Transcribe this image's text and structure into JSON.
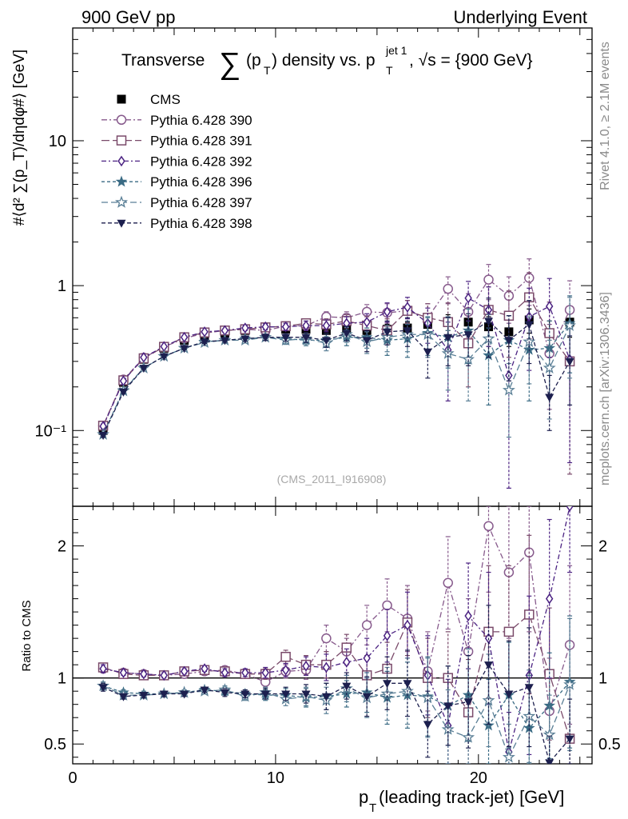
{
  "header": {
    "left_label": "900 GeV pp",
    "right_label": "Underlying Event",
    "side_label_top": "Rivet 4.1.0, ≥ 2.1M events",
    "side_label_bottom": "mcplots.cern.ch [arXiv:1306.3436]",
    "analysis_tag": "(CMS_2011_I916908)"
  },
  "chart_data": [
    {
      "type": "scatter",
      "panel": "main",
      "title_parts": {
        "prefix": "Transverse ",
        "sum_symbol": "∑",
        "p": "(p",
        "t_sub": "T",
        "mid": ") density vs. p",
        "jet_sup": "jet 1",
        "suffix": ", √s = {900 GeV}"
      },
      "ylabel": "#⟨d² ∑(p_T)/dηdφ#⟩ [GeV]",
      "yscale": "log",
      "ylim": [
        0.03,
        60
      ],
      "xlim": [
        0,
        25.6
      ],
      "yticks": [
        {
          "value": 0.1,
          "label": "10⁻¹"
        },
        {
          "value": 1,
          "label": "1"
        },
        {
          "value": 10,
          "label": "10"
        }
      ],
      "legend_position": "top-left",
      "series": [
        {
          "name": "CMS",
          "color": "#000000",
          "marker": "square-filled",
          "dash": "none",
          "x": [
            1.5,
            2.5,
            3.5,
            4.5,
            5.5,
            6.5,
            7.5,
            8.5,
            9.5,
            10.5,
            11.5,
            12.5,
            13.5,
            14.5,
            15.5,
            16.5,
            17.5,
            18.5,
            19.5,
            20.5,
            21.5,
            22.5,
            23.5,
            24.5
          ],
          "y": [
            0.1,
            0.215,
            0.31,
            0.37,
            0.42,
            0.45,
            0.47,
            0.49,
            0.5,
            0.5,
            0.5,
            0.49,
            0.5,
            0.49,
            0.5,
            0.51,
            0.54,
            0.56,
            0.56,
            0.52,
            0.48,
            0.58,
            0.47,
            0.56
          ],
          "err": [
            0.003,
            0.005,
            0.006,
            0.007,
            0.008,
            0.009,
            0.01,
            0.012,
            0.014,
            0.016,
            0.02,
            0.025,
            0.03,
            0.035,
            0.04,
            0.05,
            0.06,
            0.07,
            0.08,
            0.09,
            0.1,
            0.11,
            0.1,
            0.12
          ]
        },
        {
          "name": "Pythia 6.428 390",
          "color": "#875a8c",
          "marker": "circle-open",
          "dash": "7,3,2,3",
          "x": [
            1.5,
            2.5,
            3.5,
            4.5,
            5.5,
            6.5,
            7.5,
            8.5,
            9.5,
            10.5,
            11.5,
            12.5,
            13.5,
            14.5,
            15.5,
            16.5,
            17.5,
            18.5,
            19.5,
            20.5,
            21.5,
            22.5,
            23.5,
            24.5
          ],
          "y": [
            0.108,
            0.225,
            0.318,
            0.378,
            0.432,
            0.47,
            0.49,
            0.5,
            0.49,
            0.525,
            0.53,
            0.61,
            0.6,
            0.66,
            0.65,
            0.67,
            0.6,
            0.95,
            0.66,
            1.1,
            0.85,
            1.13,
            0.34,
            0.68
          ],
          "err": [
            0.004,
            0.006,
            0.007,
            0.008,
            0.01,
            0.012,
            0.015,
            0.02,
            0.025,
            0.03,
            0.04,
            0.05,
            0.06,
            0.08,
            0.1,
            0.12,
            0.15,
            0.2,
            0.22,
            0.3,
            0.3,
            0.4,
            0.2,
            0.4
          ]
        },
        {
          "name": "Pythia 6.428 391",
          "color": "#7a4a6a",
          "marker": "square-open",
          "dash": "10,4",
          "x": [
            1.5,
            2.5,
            3.5,
            4.5,
            5.5,
            6.5,
            7.5,
            8.5,
            9.5,
            10.5,
            11.5,
            12.5,
            13.5,
            14.5,
            15.5,
            16.5,
            17.5,
            18.5,
            19.5,
            20.5,
            21.5,
            22.5,
            23.5,
            24.5
          ],
          "y": [
            0.108,
            0.222,
            0.315,
            0.378,
            0.44,
            0.475,
            0.49,
            0.5,
            0.515,
            0.525,
            0.55,
            0.54,
            0.57,
            0.53,
            0.49,
            0.67,
            0.6,
            0.56,
            0.4,
            0.68,
            0.62,
            0.83,
            0.47,
            0.3
          ],
          "err": [
            0.004,
            0.006,
            0.007,
            0.008,
            0.01,
            0.012,
            0.015,
            0.02,
            0.025,
            0.03,
            0.04,
            0.05,
            0.06,
            0.08,
            0.1,
            0.12,
            0.15,
            0.2,
            0.2,
            0.3,
            0.3,
            0.4,
            0.3,
            0.25
          ]
        },
        {
          "name": "Pythia 6.428 392",
          "color": "#4b2282",
          "marker": "diamond-open",
          "dash": "6,3,2,3",
          "x": [
            1.5,
            2.5,
            3.5,
            4.5,
            5.5,
            6.5,
            7.5,
            8.5,
            9.5,
            10.5,
            11.5,
            12.5,
            13.5,
            14.5,
            15.5,
            16.5,
            17.5,
            18.5,
            19.5,
            20.5,
            21.5,
            22.5,
            23.5,
            24.5
          ],
          "y": [
            0.107,
            0.22,
            0.32,
            0.38,
            0.44,
            0.48,
            0.49,
            0.51,
            0.52,
            0.52,
            0.53,
            0.53,
            0.55,
            0.56,
            0.66,
            0.71,
            0.55,
            0.36,
            0.82,
            0.68,
            0.24,
            0.61,
            0.72,
            0.31
          ],
          "err": [
            0.004,
            0.006,
            0.007,
            0.008,
            0.01,
            0.012,
            0.015,
            0.02,
            0.025,
            0.03,
            0.04,
            0.05,
            0.06,
            0.08,
            0.1,
            0.12,
            0.15,
            0.2,
            0.25,
            0.3,
            0.2,
            0.35,
            0.4,
            0.25
          ]
        },
        {
          "name": "Pythia 6.428 396",
          "color": "#3a6b84",
          "marker": "star-filled",
          "dash": "4,3",
          "x": [
            1.5,
            2.5,
            3.5,
            4.5,
            5.5,
            6.5,
            7.5,
            8.5,
            9.5,
            10.5,
            11.5,
            12.5,
            13.5,
            14.5,
            15.5,
            16.5,
            17.5,
            18.5,
            19.5,
            20.5,
            21.5,
            22.5,
            23.5,
            24.5
          ],
          "y": [
            0.094,
            0.19,
            0.27,
            0.325,
            0.37,
            0.41,
            0.42,
            0.43,
            0.44,
            0.43,
            0.42,
            0.42,
            0.44,
            0.44,
            0.42,
            0.43,
            0.47,
            0.44,
            0.49,
            0.33,
            0.42,
            0.36,
            0.37,
            0.55
          ],
          "err": [
            0.003,
            0.005,
            0.006,
            0.007,
            0.009,
            0.011,
            0.014,
            0.018,
            0.022,
            0.027,
            0.035,
            0.045,
            0.055,
            0.07,
            0.09,
            0.11,
            0.14,
            0.17,
            0.2,
            0.18,
            0.2,
            0.2,
            0.2,
            0.3
          ]
        },
        {
          "name": "Pythia 6.428 397",
          "color": "#5a7f96",
          "marker": "star-open",
          "dash": "8,4",
          "x": [
            1.5,
            2.5,
            3.5,
            4.5,
            5.5,
            6.5,
            7.5,
            8.5,
            9.5,
            10.5,
            11.5,
            12.5,
            13.5,
            14.5,
            15.5,
            16.5,
            17.5,
            18.5,
            19.5,
            20.5,
            21.5,
            22.5,
            23.5,
            24.5
          ],
          "y": [
            0.094,
            0.188,
            0.27,
            0.325,
            0.37,
            0.405,
            0.42,
            0.42,
            0.44,
            0.42,
            0.43,
            0.4,
            0.46,
            0.41,
            0.44,
            0.46,
            0.46,
            0.34,
            0.31,
            0.43,
            0.19,
            0.41,
            0.27,
            0.53
          ],
          "err": [
            0.003,
            0.005,
            0.006,
            0.007,
            0.009,
            0.011,
            0.014,
            0.018,
            0.022,
            0.027,
            0.035,
            0.045,
            0.055,
            0.07,
            0.09,
            0.11,
            0.14,
            0.15,
            0.15,
            0.2,
            0.1,
            0.2,
            0.15,
            0.3
          ]
        },
        {
          "name": "Pythia 6.428 398",
          "color": "#1c1f4e",
          "marker": "triangle-down-filled",
          "dash": "5,3",
          "x": [
            1.5,
            2.5,
            3.5,
            4.5,
            5.5,
            6.5,
            7.5,
            8.5,
            9.5,
            10.5,
            11.5,
            12.5,
            13.5,
            14.5,
            15.5,
            16.5,
            17.5,
            18.5,
            19.5,
            20.5,
            21.5,
            22.5,
            23.5,
            24.5
          ],
          "y": [
            0.093,
            0.185,
            0.27,
            0.325,
            0.37,
            0.41,
            0.42,
            0.43,
            0.44,
            0.44,
            0.44,
            0.42,
            0.47,
            0.42,
            0.48,
            0.49,
            0.35,
            0.44,
            0.46,
            0.57,
            0.42,
            0.54,
            0.17,
            0.3
          ],
          "err": [
            0.003,
            0.005,
            0.006,
            0.007,
            0.009,
            0.011,
            0.014,
            0.018,
            0.022,
            0.027,
            0.035,
            0.045,
            0.055,
            0.07,
            0.09,
            0.11,
            0.12,
            0.16,
            0.18,
            0.25,
            0.2,
            0.25,
            0.07,
            0.15
          ]
        }
      ]
    },
    {
      "type": "scatter",
      "panel": "ratio",
      "ylabel": "Ratio to CMS",
      "xlabel_parts": {
        "p": "p",
        "t_sub": "T",
        "rest": " (leading track-jet) [GeV]"
      },
      "yscale": "linear",
      "ylim": [
        0.35,
        2.3
      ],
      "xlim": [
        0,
        25.6
      ],
      "yticks": [
        {
          "value": 0.5,
          "label": "0.5"
        },
        {
          "value": 1,
          "label": "1"
        },
        {
          "value": 2,
          "label": "2"
        }
      ],
      "xticks": [
        {
          "value": 0,
          "label": "0"
        },
        {
          "value": 10,
          "label": "10"
        },
        {
          "value": 20,
          "label": "20"
        }
      ],
      "reference_line": 1,
      "series": [
        {
          "name": "Pythia 6.428 390",
          "color": "#875a8c",
          "marker": "circle-open",
          "dash": "7,3,2,3",
          "y": [
            1.07,
            1.04,
            1.03,
            1.02,
            1.03,
            1.05,
            1.06,
            1.03,
            0.97,
            1.05,
            1.06,
            1.3,
            1.2,
            1.4,
            1.55,
            1.45,
            1.05,
            1.72,
            1.2,
            2.15,
            1.8,
            1.95,
            0.75,
            1.25
          ],
          "err": [
            0.03,
            0.02,
            0.02,
            0.02,
            0.02,
            0.02,
            0.03,
            0.03,
            0.04,
            0.05,
            0.07,
            0.1,
            0.1,
            0.15,
            0.2,
            0.25,
            0.3,
            0.35,
            0.4,
            0.5,
            0.5,
            0.6,
            0.4,
            0.6
          ]
        },
        {
          "name": "Pythia 6.428 391",
          "color": "#7a4a6a",
          "marker": "square-open",
          "dash": "10,4",
          "y": [
            1.08,
            1.03,
            1.02,
            1.02,
            1.05,
            1.06,
            1.05,
            1.03,
            1.03,
            1.16,
            1.1,
            1.1,
            1.23,
            1.02,
            1.07,
            1.42,
            1.0,
            1.0,
            0.74,
            1.35,
            1.35,
            1.48,
            1.03,
            0.54
          ],
          "err": [
            0.03,
            0.02,
            0.02,
            0.02,
            0.02,
            0.02,
            0.03,
            0.03,
            0.04,
            0.05,
            0.07,
            0.1,
            0.1,
            0.15,
            0.2,
            0.25,
            0.3,
            0.35,
            0.4,
            0.5,
            0.5,
            0.6,
            0.5,
            0.4
          ]
        },
        {
          "name": "Pythia 6.428 392",
          "color": "#4b2282",
          "marker": "diamond-open",
          "dash": "6,3,2,3",
          "y": [
            1.07,
            1.04,
            1.03,
            1.02,
            1.05,
            1.07,
            1.04,
            1.04,
            1.04,
            1.06,
            1.09,
            1.08,
            1.12,
            1.15,
            1.32,
            1.4,
            1.02,
            0.64,
            1.47,
            1.3,
            0.44,
            1.02,
            1.6,
            2.3
          ],
          "err": [
            0.03,
            0.02,
            0.02,
            0.02,
            0.02,
            0.02,
            0.03,
            0.03,
            0.04,
            0.05,
            0.07,
            0.1,
            0.1,
            0.15,
            0.2,
            0.25,
            0.3,
            0.35,
            0.4,
            0.5,
            0.3,
            0.6,
            0.6,
            0.5
          ]
        },
        {
          "name": "Pythia 6.428 396",
          "color": "#3a6b84",
          "marker": "star-filled",
          "dash": "4,3",
          "y": [
            0.94,
            0.89,
            0.88,
            0.88,
            0.89,
            0.91,
            0.9,
            0.88,
            0.87,
            0.87,
            0.85,
            0.86,
            0.88,
            0.89,
            0.85,
            0.87,
            0.86,
            0.79,
            0.87,
            0.64,
            0.87,
            0.62,
            0.79,
            0.97
          ],
          "err": [
            0.03,
            0.02,
            0.02,
            0.02,
            0.02,
            0.02,
            0.03,
            0.03,
            0.04,
            0.05,
            0.07,
            0.1,
            0.1,
            0.15,
            0.2,
            0.25,
            0.3,
            0.3,
            0.35,
            0.35,
            0.4,
            0.4,
            0.4,
            0.5
          ]
        },
        {
          "name": "Pythia 6.428 397",
          "color": "#5a7f96",
          "marker": "star-open",
          "dash": "8,4",
          "y": [
            0.94,
            0.87,
            0.87,
            0.88,
            0.89,
            0.9,
            0.91,
            0.86,
            0.89,
            0.84,
            0.86,
            0.83,
            0.92,
            0.85,
            0.88,
            0.9,
            0.85,
            0.61,
            0.55,
            0.83,
            0.4,
            0.71,
            0.57,
            0.95
          ],
          "err": [
            0.03,
            0.02,
            0.02,
            0.02,
            0.02,
            0.02,
            0.03,
            0.03,
            0.04,
            0.05,
            0.07,
            0.1,
            0.1,
            0.15,
            0.2,
            0.25,
            0.3,
            0.3,
            0.3,
            0.35,
            0.25,
            0.35,
            0.3,
            0.5
          ]
        },
        {
          "name": "Pythia 6.428 398",
          "color": "#1c1f4e",
          "marker": "triangle-down-filled",
          "dash": "5,3",
          "y": [
            0.93,
            0.86,
            0.87,
            0.88,
            0.88,
            0.91,
            0.89,
            0.88,
            0.88,
            0.88,
            0.88,
            0.86,
            0.94,
            0.86,
            0.96,
            0.96,
            0.65,
            0.79,
            0.82,
            1.1,
            0.88,
            0.93,
            0.36,
            0.54
          ],
          "err": [
            0.03,
            0.02,
            0.02,
            0.02,
            0.02,
            0.02,
            0.03,
            0.03,
            0.04,
            0.05,
            0.07,
            0.1,
            0.1,
            0.15,
            0.2,
            0.25,
            0.25,
            0.3,
            0.35,
            0.45,
            0.4,
            0.45,
            0.2,
            0.3
          ]
        }
      ]
    }
  ]
}
